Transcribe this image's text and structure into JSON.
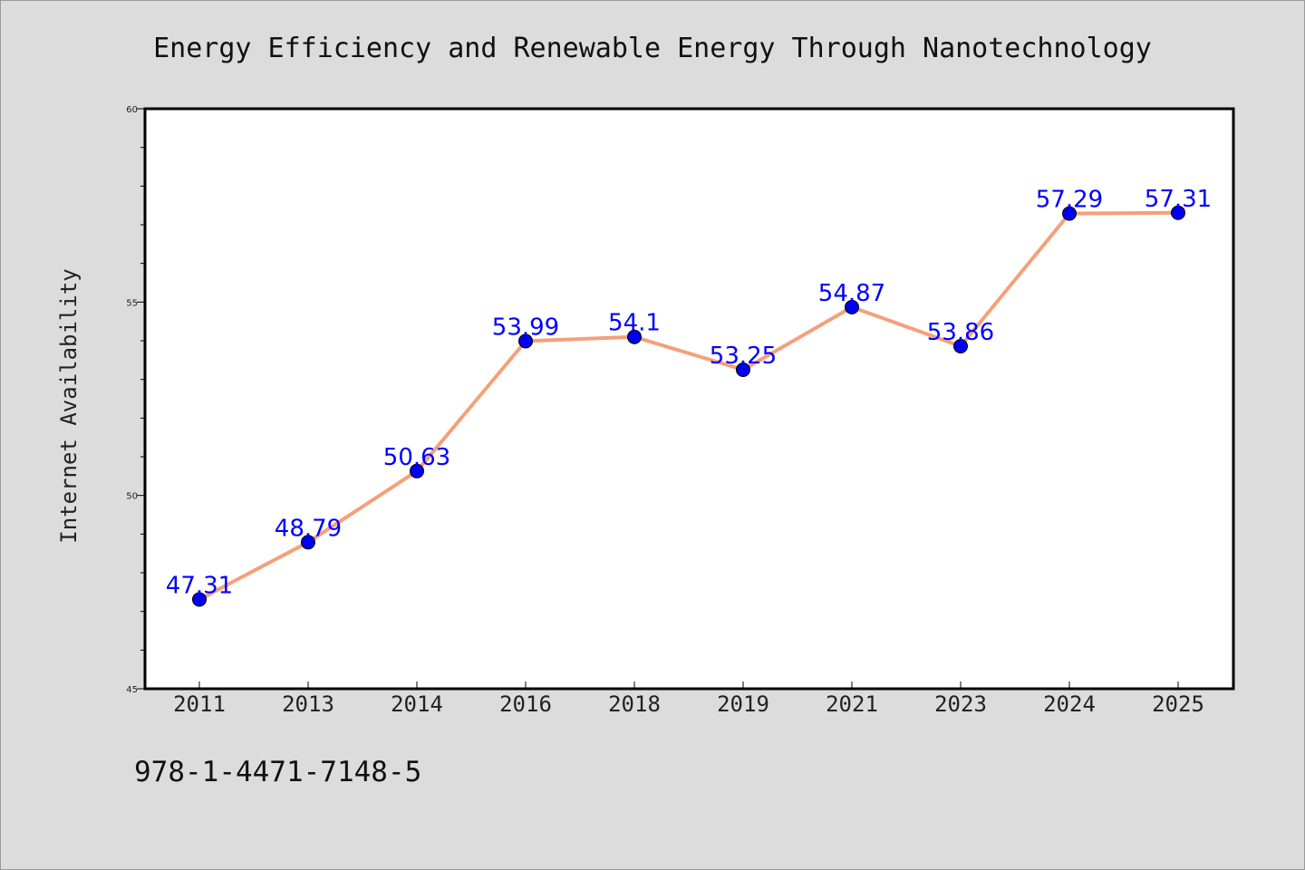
{
  "footnote": "978-1-4471-7148-5",
  "colors": {
    "background": "#dcdcdc",
    "plot_background": "#ffffff",
    "line": "#f4a07a",
    "marker": "#0000ee",
    "label": "#0000ff"
  },
  "chart_data": {
    "type": "line",
    "title": "Energy Efficiency and Renewable Energy Through Nanotechnology",
    "xlabel": "",
    "ylabel": "Internet Availability",
    "categories": [
      "2011",
      "2013",
      "2014",
      "2016",
      "2018",
      "2019",
      "2021",
      "2023",
      "2024",
      "2025"
    ],
    "series": [
      {
        "values": [
          47.31,
          48.79,
          50.63,
          53.99,
          54.1,
          53.25,
          54.87,
          53.86,
          57.29,
          57.31
        ],
        "labels": [
          "47.31",
          "48.79",
          "50.63",
          "53.99",
          "54.1",
          "53.25",
          "54.87",
          "53.86",
          "57.29",
          "57.31"
        ]
      }
    ],
    "ylim": [
      45,
      60
    ],
    "yticks": [
      45,
      50,
      55,
      60
    ],
    "grid": false,
    "legend": "none"
  }
}
